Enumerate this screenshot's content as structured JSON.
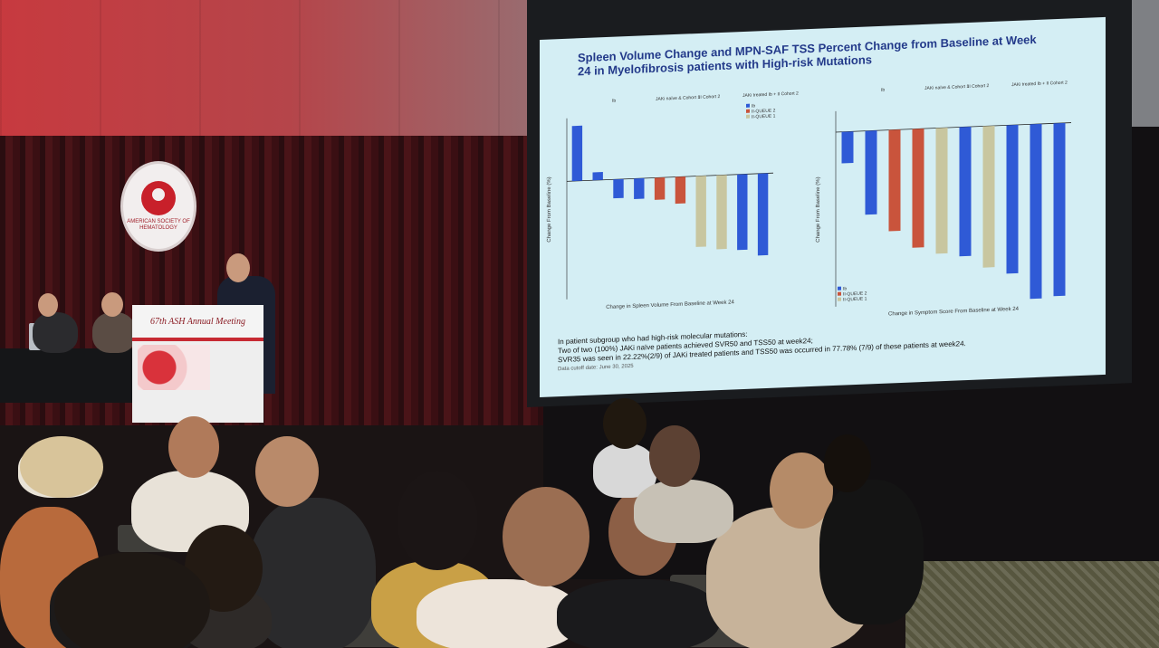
{
  "logo": {
    "text": "AMERICAN SOCIETY OF HEMATOLOGY"
  },
  "podium": {
    "banner": "67th ASH Annual Meeting"
  },
  "slide": {
    "title": "Spleen Volume Change and MPN-SAF TSS Percent Change from Baseline at Week 24 in Myelofibrosis patients with High-risk Mutations",
    "bullets": [
      "In patient subgroup who had high-risk molecular mutations:",
      "Two of two (100%) JAKi naïve patients achieved SVR50 and TSS50 at week24;",
      "SVR35 was seen in 22.22%(2/9) of JAKi treated patients and TSS50 was occurred in 77.78% (7/9) of these patients at week24.",
      "Data cutoff date: June 30, 2025"
    ],
    "colors": {
      "screen_bg": "#d4eef4",
      "title": "#233a8a",
      "ib": "#2f5ad6",
      "iia": "#c9543c",
      "iib": "#c8c6a0"
    }
  },
  "chart_data": [
    {
      "type": "bar",
      "title": "",
      "xlabel": "Change in Spleen Volume From Baseline at Week 24",
      "ylabel": "Change From Baseline (%)",
      "ylim": [
        -75,
        40
      ],
      "legend": [
        "Ib",
        "II-QUEUE 2",
        "II-QUEUE 1"
      ],
      "legend_position": "top-right",
      "series_colors": [
        "#2f5ad6",
        "#2f5ad6",
        "#2f5ad6",
        "#2f5ad6",
        "#c9543c",
        "#c9543c",
        "#c8c6a0",
        "#c8c6a0",
        "#2f5ad6",
        "#2f5ad6"
      ],
      "values": [
        35,
        5,
        -12,
        -13,
        -14,
        -17,
        -45,
        -47,
        -48,
        -52
      ],
      "table_header": [
        "Ib",
        "JAKi naïve & Cohort 1",
        "II Cohort 2",
        "JAKi treated Ib + II Cohort 2"
      ]
    },
    {
      "type": "bar",
      "title": "",
      "xlabel": "Change in Symptom Score From Baseline at Week 24",
      "ylabel": "Change From Baseline (%)",
      "ylim": [
        -100,
        12
      ],
      "legend": [
        "Ib",
        "II-QUEUE 2",
        "II-QUEUE 1"
      ],
      "legend_position": "bottom-left",
      "series_colors": [
        "#2f5ad6",
        "#2f5ad6",
        "#c9543c",
        "#c9543c",
        "#c8c6a0",
        "#2f5ad6",
        "#c8c6a0",
        "#2f5ad6",
        "#2f5ad6",
        "#2f5ad6"
      ],
      "values": [
        -18,
        -48,
        -58,
        -68,
        -72,
        -74,
        -81,
        -85,
        -100,
        -99
      ],
      "table_header": [
        "Ib",
        "JAKi naïve & Cohort 1",
        "II Cohort 2",
        "JAKi treated Ib + II Cohort 2"
      ]
    }
  ]
}
